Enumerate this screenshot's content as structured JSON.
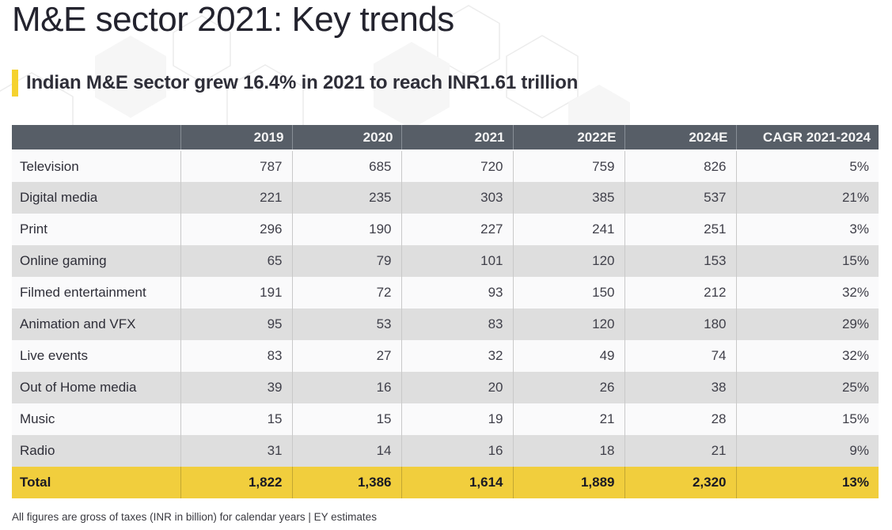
{
  "page": {
    "title": "M&E sector 2021: Key trends",
    "subtitle": "Indian M&E sector grew 16.4% in 2021 to reach INR1.61 trillion",
    "footnote": "All figures are gross of taxes (INR in billion) for calendar years | EY estimates"
  },
  "colors": {
    "accent_yellow": "#f5d22f",
    "header_bg": "#575e67",
    "row_base": "#fafafb",
    "row_alt": "#dedede",
    "total_row_bg": "#f1ce3d",
    "title_text": "#23232e",
    "hexagon_decoration": "#efefef"
  },
  "chart_data": {
    "type": "table",
    "title": "Indian M&E sector grew 16.4% in 2021 to reach INR1.61 trillion",
    "unit": "INR billion, gross of taxes, calendar years",
    "columns": [
      "",
      "2019",
      "2020",
      "2021",
      "2022E",
      "2024E",
      "CAGR 2021-2024"
    ],
    "rows": [
      {
        "label": "Television",
        "values": [
          787,
          685,
          720,
          759,
          826
        ],
        "cagr": "5%"
      },
      {
        "label": "Digital media",
        "values": [
          221,
          235,
          303,
          385,
          537
        ],
        "cagr": "21%"
      },
      {
        "label": "Print",
        "values": [
          296,
          190,
          227,
          241,
          251
        ],
        "cagr": "3%"
      },
      {
        "label": "Online gaming",
        "values": [
          65,
          79,
          101,
          120,
          153
        ],
        "cagr": "15%"
      },
      {
        "label": "Filmed entertainment",
        "values": [
          191,
          72,
          93,
          150,
          212
        ],
        "cagr": "32%"
      },
      {
        "label": "Animation and VFX",
        "values": [
          95,
          53,
          83,
          120,
          180
        ],
        "cagr": "29%"
      },
      {
        "label": "Live events",
        "values": [
          83,
          27,
          32,
          49,
          74
        ],
        "cagr": "32%"
      },
      {
        "label": "Out of Home media",
        "values": [
          39,
          16,
          20,
          26,
          38
        ],
        "cagr": "25%"
      },
      {
        "label": "Music",
        "values": [
          15,
          15,
          19,
          21,
          28
        ],
        "cagr": "15%"
      },
      {
        "label": "Radio",
        "values": [
          31,
          14,
          16,
          18,
          21
        ],
        "cagr": "9%"
      }
    ],
    "total": {
      "label": "Total",
      "values": [
        1822,
        1386,
        1614,
        1889,
        2320
      ],
      "cagr": "13%"
    }
  }
}
